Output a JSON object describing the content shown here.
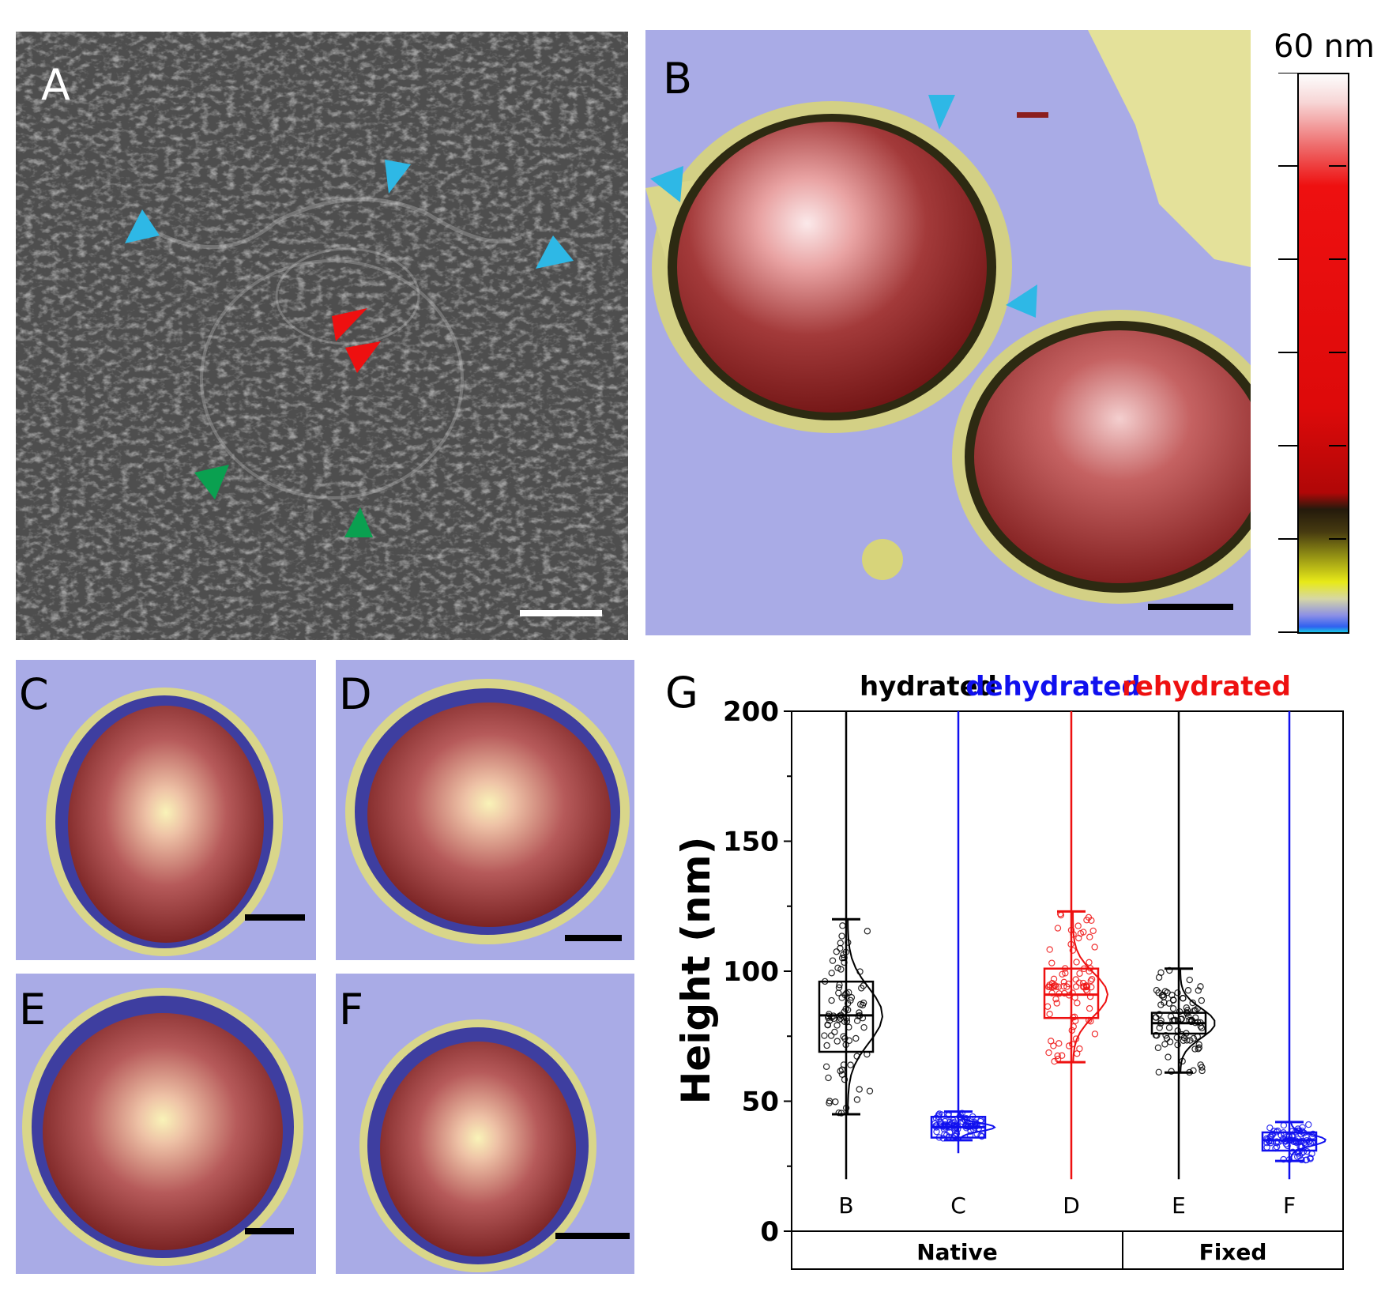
{
  "panels": {
    "a": {
      "label": "A"
    },
    "b": {
      "label": "B"
    },
    "c": {
      "label": "C"
    },
    "d": {
      "label": "D"
    },
    "e": {
      "label": "E"
    },
    "f": {
      "label": "F"
    },
    "g": {
      "label": "G"
    }
  },
  "colorbar": {
    "max_label": "60 nm"
  },
  "colors": {
    "hydrated": "#000000",
    "dehydrated": "#1010ee",
    "rehydrated": "#ee1010",
    "cyan_arrow": "#2eb8e6",
    "red_arrow": "#ee1010",
    "green_arrow": "#0aa050",
    "afm_background": "#a9abe6"
  },
  "chart_data": {
    "type": "box",
    "title": "",
    "ylabel": "Height (nm)",
    "xlabel": "",
    "ylim": [
      0,
      200
    ],
    "yticks": [
      0,
      50,
      100,
      150,
      200
    ],
    "legend": [
      {
        "name": "hydrated",
        "color": "#000000"
      },
      {
        "name": "dehydrated",
        "color": "#1010ee"
      },
      {
        "name": "rehydrated",
        "color": "#ee1010"
      }
    ],
    "groups": [
      {
        "label": "Native",
        "categories": [
          "B",
          "C",
          "D"
        ]
      },
      {
        "label": "Fixed",
        "categories": [
          "E",
          "F"
        ]
      }
    ],
    "series": [
      {
        "category": "B",
        "condition": "hydrated",
        "color": "#000000",
        "whisker_low": 45,
        "q1": 69,
        "median": 83,
        "q3": 96,
        "whisker_high": 120,
        "min": 20,
        "max": 200
      },
      {
        "category": "C",
        "condition": "dehydrated",
        "color": "#1010ee",
        "whisker_low": 35,
        "q1": 36,
        "median": 40,
        "q3": 44,
        "whisker_high": 46,
        "min": 30,
        "max": 200
      },
      {
        "category": "D",
        "condition": "rehydrated",
        "color": "#ee1010",
        "whisker_low": 65,
        "q1": 82,
        "median": 91,
        "q3": 101,
        "whisker_high": 123,
        "min": 20,
        "max": 200
      },
      {
        "category": "E",
        "condition": "hydrated",
        "color": "#000000",
        "whisker_low": 61,
        "q1": 76,
        "median": 80,
        "q3": 84,
        "whisker_high": 101,
        "min": 20,
        "max": 200
      },
      {
        "category": "F",
        "condition": "dehydrated",
        "color": "#1010ee",
        "whisker_low": 27,
        "q1": 31,
        "median": 35,
        "q3": 38,
        "whisker_high": 42,
        "min": 20,
        "max": 200
      }
    ]
  }
}
